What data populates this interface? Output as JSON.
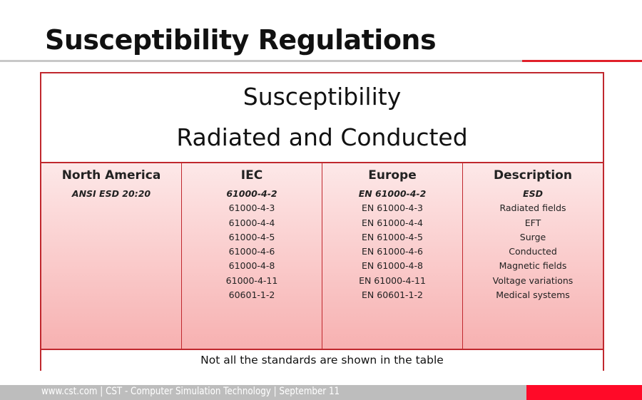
{
  "slide": {
    "title": "Susceptibility Regulations"
  },
  "table": {
    "heading_line1": "Susceptibility",
    "heading_line2": "Radiated and Conducted",
    "columns": [
      {
        "header": "North America",
        "cells": [
          "ANSI ESD 20:20"
        ]
      },
      {
        "header": "IEC",
        "cells": [
          "61000-4-2",
          "61000-4-3",
          "61000-4-4",
          "61000-4-5",
          "61000-4-6",
          "61000-4-8",
          "61000-4-11",
          "60601-1-2"
        ]
      },
      {
        "header": "Europe",
        "cells": [
          "EN 61000-4-2",
          "EN 61000-4-3",
          "EN 61000-4-4",
          "EN 61000-4-5",
          "EN 61000-4-6",
          "EN 61000-4-8",
          "EN 61000-4-11",
          "EN 60601-1-2"
        ]
      },
      {
        "header": "Description",
        "cells": [
          "ESD",
          "Radiated fields",
          "EFT",
          "Surge",
          "Conducted",
          "Magnetic fields",
          "Voltage variations",
          "Medical systems"
        ]
      }
    ],
    "note": "Not all the standards are shown in the table"
  },
  "footer": {
    "text": "www.cst.com  |  CST - Computer Simulation Technology  |  September 11"
  },
  "colors": {
    "accent": "#e0202a",
    "border": "#c0282e",
    "footer_gray": "#bdbdbd"
  }
}
